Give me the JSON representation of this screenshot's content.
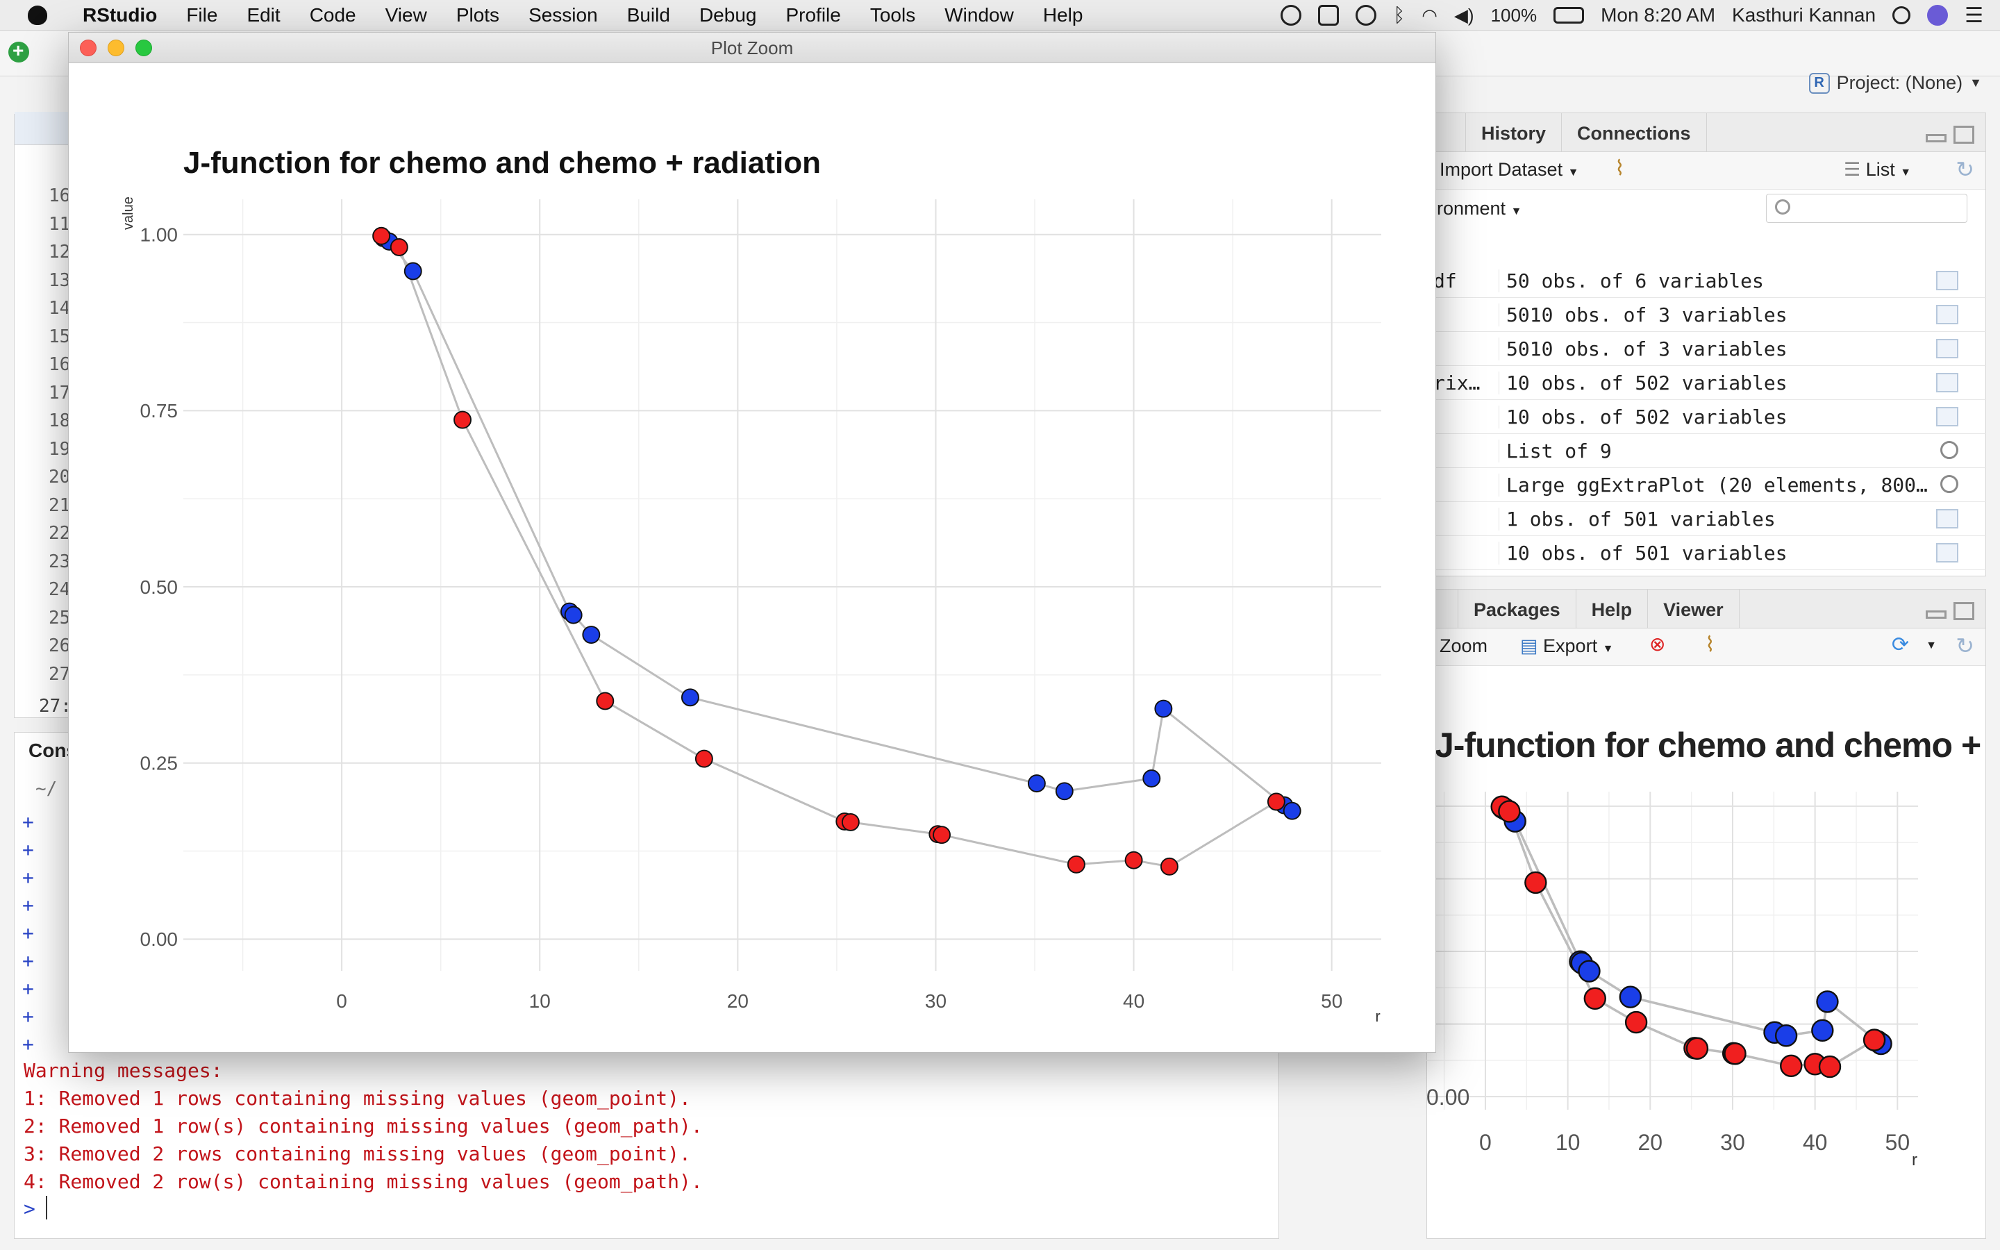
{
  "menubar": {
    "app": "RStudio",
    "items": [
      "File",
      "Edit",
      "Code",
      "View",
      "Plots",
      "Session",
      "Build",
      "Debug",
      "Profile",
      "Tools",
      "Window",
      "Help"
    ],
    "battery": "100%",
    "clock": "Mon 8:20 AM",
    "user": "Kasthuri Kannan"
  },
  "rstudio": {
    "project_label": "Project: (None)",
    "editor_line_numbers": [
      "16",
      "11",
      "12",
      "13",
      "14",
      "15",
      "16",
      "17",
      "18",
      "19",
      "20",
      "21",
      "22",
      "23",
      "24",
      "25",
      "26",
      "27"
    ],
    "editor_status": "27:",
    "console": {
      "header": "Cons",
      "path": "~/",
      "continuation_prompts": [
        "+",
        "+",
        "+",
        "+",
        "+",
        "+",
        "+",
        "+",
        "+"
      ],
      "warnings": [
        "Warning messages:",
        "1: Removed 1 rows containing missing values (geom_point).",
        "2: Removed 1 row(s) containing missing values (geom_path).",
        "3: Removed 2 rows containing missing values (geom_point).",
        "4: Removed 2 row(s) containing missing values (geom_path)."
      ],
      "prompt": ">"
    },
    "env_pane": {
      "tabs": [
        "History",
        "Connections"
      ],
      "import_label": "Import Dataset",
      "list_label": "List",
      "env_label": "ronment",
      "rows": [
        {
          "name": "df",
          "value": "50 obs. of 6 variables",
          "icon": "table-icon"
        },
        {
          "name": "",
          "value": "5010 obs. of 3 variables",
          "icon": "table-icon"
        },
        {
          "name": "",
          "value": "5010 obs. of 3 variables",
          "icon": "table-icon"
        },
        {
          "name": "rix…",
          "value": "10 obs. of 502 variables",
          "icon": "table-icon"
        },
        {
          "name": "",
          "value": "10 obs. of 502 variables",
          "icon": "table-icon"
        },
        {
          "name": "",
          "value": "List of 9",
          "icon": "magnifier-icon"
        },
        {
          "name": "",
          "value": "Large ggExtraPlot (20 elements, 800…",
          "icon": "magnifier-icon"
        },
        {
          "name": "",
          "value": "1 obs. of 501 variables",
          "icon": "table-icon"
        },
        {
          "name": "",
          "value": "10 obs. of 501 variables",
          "icon": "table-icon"
        }
      ]
    },
    "plots_pane": {
      "tabs": [
        "Packages",
        "Help",
        "Viewer"
      ],
      "zoom_label": "Zoom",
      "export_label": "Export",
      "plot_title": "J-function for chemo and chemo + r",
      "y_tick": "0.00",
      "x_ticks": [
        "0",
        "10",
        "20",
        "30",
        "40",
        "50"
      ],
      "x_label": "r"
    }
  },
  "zoom_window": {
    "title": "Plot Zoom"
  },
  "chart_data": {
    "type": "line",
    "title": "J-function for chemo and chemo + radiation",
    "xlabel": "r",
    "ylabel": "value",
    "xlim": [
      -8,
      52.5
    ],
    "ylim": [
      -0.045,
      1.05
    ],
    "x_ticks": [
      0,
      10,
      20,
      30,
      40,
      50
    ],
    "y_ticks": [
      0.0,
      0.25,
      0.5,
      0.75,
      1.0
    ],
    "y_tick_labels": [
      "0.00",
      "0.25",
      "0.50",
      "0.75",
      "1.00"
    ],
    "x_tick_labels": [
      "0",
      "10",
      "20",
      "30",
      "40",
      "50"
    ],
    "grid": true,
    "legend": "none",
    "series": [
      {
        "color": "#1a3ee8",
        "x": [
          2.1,
          2.4,
          3.6,
          11.5,
          11.7,
          12.6,
          17.6,
          35.1,
          36.5,
          40.9,
          41.5,
          47.6,
          48.0
        ],
        "y": [
          0.995,
          0.99,
          0.948,
          0.465,
          0.46,
          0.432,
          0.343,
          0.221,
          0.21,
          0.228,
          0.327,
          0.19,
          0.182
        ]
      },
      {
        "color": "#f01f1f",
        "x": [
          2.0,
          2.9,
          6.1,
          13.3,
          18.3,
          25.4,
          25.7,
          30.1,
          30.3,
          37.1,
          40.0,
          41.8,
          47.2
        ],
        "y": [
          0.998,
          0.982,
          0.737,
          0.338,
          0.256,
          0.167,
          0.166,
          0.149,
          0.148,
          0.106,
          0.112,
          0.103,
          0.195
        ]
      }
    ],
    "path_color": "#bdbdbd"
  }
}
